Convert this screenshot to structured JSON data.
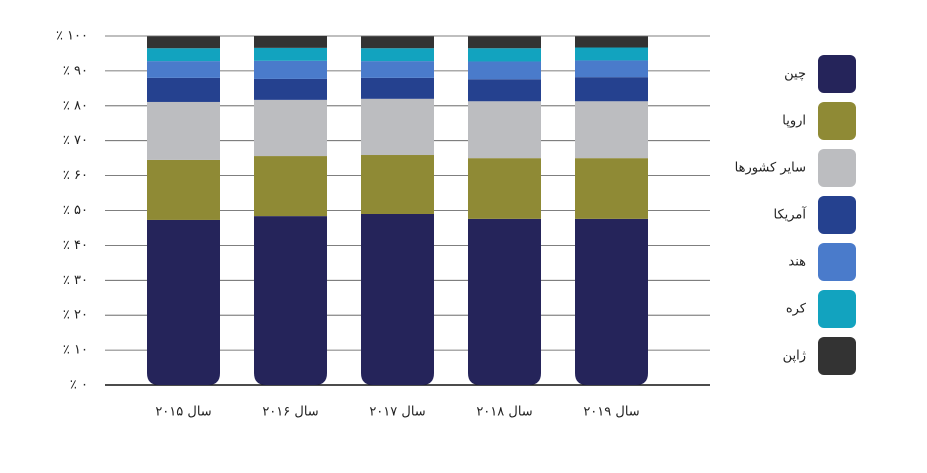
{
  "chart_data": {
    "type": "stacked-bar",
    "categories": [
      "سال ۲۰۱۵",
      "سال ۲۰۱۶",
      "سال ۲۰۱۷",
      "سال ۲۰۱۸",
      "سال ۲۰۱۹"
    ],
    "series": [
      {
        "name": "چین",
        "color": "#25245a",
        "values": [
          47.3,
          48.4,
          49.0,
          47.6,
          47.6
        ]
      },
      {
        "name": "اروپا",
        "color": "#8f8a35",
        "values": [
          17.2,
          17.2,
          16.9,
          17.4,
          17.4
        ]
      },
      {
        "name": "سایر کشورها",
        "color": "#bcbdc0",
        "values": [
          16.6,
          16.1,
          16.1,
          16.3,
          16.3
        ]
      },
      {
        "name": "آمریکا",
        "color": "#25418f",
        "values": [
          6.9,
          6.0,
          6.0,
          6.3,
          6.9
        ]
      },
      {
        "name": "هند",
        "color": "#4a7bcb",
        "values": [
          4.8,
          5.2,
          4.8,
          5.1,
          4.8
        ]
      },
      {
        "name": "کره",
        "color": "#12a3bf",
        "values": [
          3.7,
          3.7,
          3.7,
          3.8,
          3.7
        ]
      },
      {
        "name": "ژاپن",
        "color": "#333333",
        "values": [
          3.4,
          3.4,
          3.4,
          3.4,
          3.2
        ]
      }
    ],
    "ylim": [
      0,
      100
    ],
    "yticks": [
      {
        "value": 0,
        "label": "٪ ۰"
      },
      {
        "value": 10,
        "label": "٪ ۱۰"
      },
      {
        "value": 20,
        "label": "٪ ۲۰"
      },
      {
        "value": 30,
        "label": "٪ ۳۰"
      },
      {
        "value": 40,
        "label": "٪ ۴۰"
      },
      {
        "value": 50,
        "label": "٪ ۵۰"
      },
      {
        "value": 60,
        "label": "٪ ۶۰"
      },
      {
        "value": 70,
        "label": "٪ ۷۰"
      },
      {
        "value": 80,
        "label": "٪ ۸۰"
      },
      {
        "value": 90,
        "label": "٪ ۹۰"
      },
      {
        "value": 100,
        "label": "٪ ۱۰۰"
      }
    ],
    "grid": true
  }
}
